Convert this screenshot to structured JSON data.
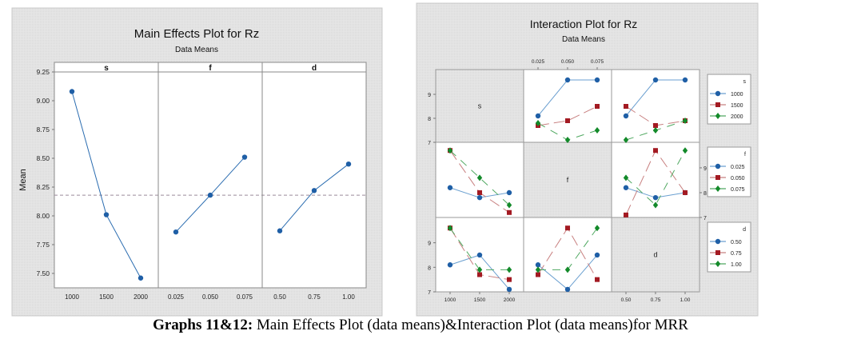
{
  "caption": {
    "label": "Graphs 11&12:",
    "text": " Main Effects Plot (data means)&Interaction Plot (data means)for MRR"
  },
  "colors": {
    "panel_bg": "#e4e4e4",
    "series_blue": "#1f5fa6",
    "series_red": "#a31a22",
    "series_green": "#138a2a",
    "mean_line": "#9a8a9a"
  },
  "chart_data": [
    {
      "type": "line",
      "title": "Main Effects Plot for Rz",
      "subtitle": "Data Means",
      "ylabel": "Mean",
      "ylim": [
        7.35,
        9.3
      ],
      "yticks": [
        "9.25",
        "9.00",
        "8.75",
        "8.50",
        "8.25",
        "8.00",
        "7.75",
        "7.50"
      ],
      "ytick_values": [
        9.25,
        9.0,
        8.75,
        8.5,
        8.25,
        8.0,
        7.75,
        7.5
      ],
      "grand_mean": 8.18,
      "panels": [
        {
          "factor": "s",
          "x": [
            "1000",
            "1500",
            "2000"
          ],
          "values": [
            9.08,
            8.01,
            7.46
          ]
        },
        {
          "factor": "f",
          "x": [
            "0.025",
            "0.050",
            "0.075"
          ],
          "values": [
            7.86,
            8.18,
            8.51
          ]
        },
        {
          "factor": "d",
          "x": [
            "0.50",
            "0.75",
            "1.00"
          ],
          "values": [
            7.87,
            8.22,
            8.45
          ]
        }
      ]
    },
    {
      "type": "line",
      "title": "Interaction Plot for Rz",
      "subtitle": "Data Means",
      "ylim": [
        7,
        9.8
      ],
      "yticks": [
        "9",
        "8",
        "7"
      ],
      "ytick_values": [
        9,
        8,
        7
      ],
      "factors": [
        "s",
        "f",
        "d"
      ],
      "levels": {
        "s": [
          "1000",
          "1500",
          "2000"
        ],
        "f": [
          "0.025",
          "0.050",
          "0.075"
        ],
        "d": [
          "0.50",
          "0.75",
          "1.00"
        ]
      },
      "top_axis_labels": [
        "0.025",
        "0.050",
        "0.075"
      ],
      "bottom_axis_labels_s": [
        "1000",
        "1500",
        "2000"
      ],
      "bottom_axis_labels_d": [
        "0.50",
        "0.75",
        "1.00"
      ],
      "legends": [
        {
          "title": "s",
          "entries": [
            "1000",
            "1500",
            "2000"
          ]
        },
        {
          "title": "f",
          "entries": [
            "0.025",
            "0.050",
            "0.075"
          ]
        },
        {
          "title": "d",
          "entries": [
            "0.50",
            "0.75",
            "1.00"
          ]
        }
      ],
      "cells": [
        {
          "row": "s",
          "col": "f",
          "series": [
            [
              8.1,
              9.6,
              9.6
            ],
            [
              7.7,
              7.9,
              8.5
            ],
            [
              7.8,
              7.1,
              7.5
            ]
          ]
        },
        {
          "row": "s",
          "col": "d",
          "series": [
            [
              8.1,
              9.6,
              9.6
            ],
            [
              8.5,
              7.7,
              7.9
            ],
            [
              7.1,
              7.5,
              7.9
            ]
          ]
        },
        {
          "row": "f",
          "col": "s",
          "series": [
            [
              8.2,
              7.8,
              8.0
            ],
            [
              9.7,
              8.0,
              7.2
            ],
            [
              9.7,
              8.6,
              7.5
            ]
          ]
        },
        {
          "row": "f",
          "col": "d",
          "series": [
            [
              8.2,
              7.8,
              8.0
            ],
            [
              7.1,
              9.7,
              8.0
            ],
            [
              8.6,
              7.5,
              9.7
            ]
          ]
        },
        {
          "row": "d",
          "col": "s",
          "series": [
            [
              8.1,
              8.5,
              7.1
            ],
            [
              9.6,
              7.7,
              7.5
            ],
            [
              9.6,
              7.9,
              7.9
            ]
          ]
        },
        {
          "row": "d",
          "col": "f",
          "series": [
            [
              8.1,
              7.1,
              8.5
            ],
            [
              7.7,
              9.6,
              7.5
            ],
            [
              7.9,
              7.9,
              9.6
            ]
          ]
        }
      ]
    }
  ]
}
